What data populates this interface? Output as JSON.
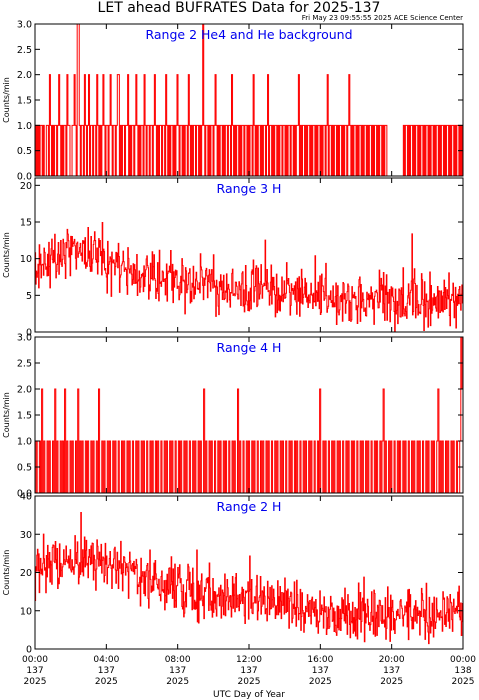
{
  "header": {
    "title": "LET ahead BUFRATES Data for 2025-137",
    "timestamp": "Fri May 23 09:55:55 2025 ACE Science Center"
  },
  "chart_data": {
    "type": "line",
    "xlabel": "UTC Day of Year",
    "xlim_hours": [
      0,
      24
    ],
    "x_ticks": [
      {
        "hour": 0,
        "lines": [
          "00:00",
          "137",
          "2025"
        ]
      },
      {
        "hour": 4,
        "lines": [
          "04:00",
          "137",
          "2025"
        ]
      },
      {
        "hour": 8,
        "lines": [
          "08:00",
          "137",
          "2025"
        ]
      },
      {
        "hour": 12,
        "lines": [
          "12:00",
          "137",
          "2025"
        ]
      },
      {
        "hour": 16,
        "lines": [
          "16:00",
          "137",
          "2025"
        ]
      },
      {
        "hour": 20,
        "lines": [
          "20:00",
          "137",
          "2025"
        ]
      },
      {
        "hour": 24,
        "lines": [
          "00:00",
          "138",
          "2025"
        ]
      }
    ],
    "panels": [
      {
        "id": "range2-he4",
        "title": "Range 2 He4 and He background",
        "ylabel": "Counts/min",
        "ylim": [
          0,
          3.0
        ],
        "yticks": [
          "0.0",
          "0.5",
          "1.0",
          "1.5",
          "2.0",
          "2.5",
          "3.0"
        ],
        "ytick_values": [
          0,
          0.5,
          1.0,
          1.5,
          2.0,
          2.5,
          3.0
        ],
        "data_gap_hours": [
          19.7,
          20.4
        ],
        "series": {
          "values": [
            0,
            1,
            0,
            1,
            0,
            1,
            1,
            0,
            1,
            0,
            0,
            1,
            1,
            0,
            2,
            1,
            0,
            1,
            0,
            1,
            1,
            0,
            1,
            2,
            1,
            0,
            1,
            0,
            1,
            1,
            0,
            2,
            1,
            1,
            0,
            0,
            1,
            1,
            2,
            1,
            0,
            3,
            3,
            1,
            0,
            1,
            1,
            0,
            2,
            1,
            0,
            1,
            2,
            0,
            1,
            1,
            0,
            1,
            1,
            0,
            2,
            1,
            0,
            1,
            0,
            1,
            2,
            1,
            0,
            1,
            1,
            0,
            1,
            2,
            1,
            0,
            1,
            1,
            0,
            1,
            2,
            2,
            0,
            1,
            0,
            1,
            1,
            0,
            1,
            1,
            2,
            0,
            1,
            0,
            1,
            1,
            0,
            1,
            2,
            1,
            0,
            1,
            0,
            1,
            1,
            0,
            2,
            1,
            0,
            1,
            1,
            0,
            1,
            1,
            0,
            1,
            2,
            1,
            0,
            1,
            0,
            1,
            1,
            0,
            1,
            1,
            0,
            2,
            1,
            0,
            1,
            0,
            1,
            1,
            0,
            1,
            0,
            1,
            2,
            1,
            0,
            1,
            1,
            0,
            1,
            0,
            1,
            1,
            0,
            2,
            1,
            0,
            1,
            0,
            1,
            1,
            0,
            1,
            1,
            0,
            1,
            0,
            1,
            3,
            1,
            0,
            1,
            1,
            0,
            1,
            0,
            1,
            1,
            0,
            1,
            2,
            1,
            0,
            1,
            0,
            1,
            1,
            0,
            1,
            0,
            1,
            1,
            0,
            1,
            1,
            0,
            2,
            1,
            0,
            1,
            0,
            1,
            1,
            0,
            1,
            0,
            1,
            1,
            0,
            1,
            1,
            0,
            1,
            0,
            1,
            1,
            0,
            2,
            1,
            0,
            1,
            0,
            1,
            1,
            0,
            1,
            0,
            1,
            1,
            0,
            1,
            2,
            0,
            1,
            1,
            0,
            1,
            0,
            1,
            1,
            0,
            1,
            0,
            1,
            1,
            0,
            1,
            1,
            0,
            1,
            0,
            1,
            1,
            0,
            1,
            1,
            0,
            1,
            0,
            1,
            1,
            2,
            0,
            1,
            0,
            1,
            1,
            0,
            1,
            0,
            1,
            1,
            0,
            1,
            0,
            1,
            1,
            0,
            1,
            0,
            1,
            1,
            0,
            1,
            0,
            1,
            1,
            0,
            1,
            2,
            0,
            1,
            1,
            0,
            1,
            0,
            1,
            1,
            0,
            1,
            0,
            1,
            1,
            0,
            1,
            0,
            1,
            1,
            0,
            1,
            2,
            1,
            0,
            1,
            0,
            1,
            1,
            0,
            1,
            0,
            1,
            1,
            0,
            1,
            0,
            1,
            1,
            0,
            1,
            0,
            1,
            1,
            0,
            1,
            0,
            1,
            1,
            0,
            1,
            0,
            1,
            1,
            0,
            1,
            0,
            1,
            1,
            0,
            0,
            0,
            0,
            0,
            0,
            0,
            0,
            0,
            0,
            0,
            0,
            0,
            0,
            0,
            0,
            1,
            0,
            1,
            1,
            0,
            1,
            0,
            1,
            1,
            0,
            1,
            0,
            1,
            1,
            0,
            1,
            0,
            1,
            1,
            0,
            1,
            0,
            1,
            1,
            0,
            1,
            0,
            1,
            1,
            0,
            1,
            0,
            1,
            1,
            0,
            1,
            0,
            1,
            1,
            0,
            1,
            0,
            1,
            1,
            0,
            1,
            0,
            1,
            1,
            0,
            1,
            0,
            1,
            1,
            0,
            1,
            0,
            1
          ]
        }
      },
      {
        "id": "range3-h",
        "title": "Range 3 H",
        "ylabel": "Counts/min",
        "ylim": [
          0,
          21
        ],
        "yticks": [
          "0",
          "5",
          "10",
          "15",
          "20"
        ],
        "ytick_values": [
          0,
          5,
          10,
          15,
          20
        ],
        "trend": [
          [
            0,
            9
          ],
          [
            2,
            11
          ],
          [
            3.5,
            10.5
          ],
          [
            6,
            7.5
          ],
          [
            10,
            6.5
          ],
          [
            12,
            6
          ],
          [
            15,
            5
          ],
          [
            18,
            4.5
          ],
          [
            24,
            4.2
          ]
        ],
        "noise_amplitude": 3.5,
        "series": {
          "seed": 3137
        }
      },
      {
        "id": "range4-h",
        "title": "Range 4 H",
        "ylabel": "Counts/min",
        "ylim": [
          0,
          3.0
        ],
        "yticks": [
          "0.0",
          "0.5",
          "1.0",
          "1.5",
          "2.0",
          "2.5",
          "3.0"
        ],
        "ytick_values": [
          0,
          0.5,
          1.0,
          1.5,
          2.0,
          2.5,
          3.0
        ],
        "series": {
          "values": [
            0,
            1,
            0,
            0,
            1,
            0,
            2,
            0,
            1,
            0,
            0,
            1,
            0,
            1,
            0,
            0,
            1,
            0,
            2,
            0,
            1,
            0,
            0,
            1,
            0,
            1,
            0,
            2,
            0,
            1,
            0,
            0,
            1,
            0,
            1,
            0,
            0,
            1,
            0,
            2,
            0,
            1,
            0,
            1,
            0,
            0,
            1,
            0,
            1,
            0,
            0,
            1,
            0,
            1,
            0,
            0,
            1,
            0,
            2,
            0,
            0,
            1,
            0,
            1,
            0,
            0,
            1,
            0,
            1,
            0,
            0,
            1,
            0,
            1,
            0,
            0,
            1,
            0,
            0,
            1,
            0,
            1,
            0,
            0,
            1,
            0,
            1,
            0,
            0,
            1,
            0,
            0,
            1,
            0,
            1,
            0,
            0,
            1,
            0,
            1,
            0,
            0,
            1,
            0,
            0,
            1,
            0,
            1,
            0,
            0,
            1,
            0,
            1,
            0,
            0,
            1,
            0,
            0,
            1,
            0,
            1,
            0,
            0,
            1,
            0,
            1,
            0,
            0,
            1,
            0,
            0,
            1,
            0,
            1,
            0,
            0,
            1,
            0,
            1,
            0,
            0,
            1,
            0,
            0,
            1,
            0,
            1,
            0,
            0,
            1,
            0,
            1,
            0,
            0,
            2,
            0,
            1,
            0,
            0,
            1,
            0,
            1,
            0,
            0,
            1,
            0,
            0,
            1,
            0,
            1,
            0,
            0,
            1,
            0,
            1,
            0,
            0,
            1,
            0,
            0,
            1,
            0,
            1,
            0,
            0,
            2,
            0,
            1,
            0,
            0,
            1,
            0,
            0,
            1,
            0,
            1,
            0,
            0,
            1,
            0,
            1,
            0,
            0,
            1,
            0,
            0,
            1,
            0,
            1,
            0,
            0,
            1,
            0,
            1,
            0,
            0,
            1,
            0,
            0,
            1,
            0,
            1,
            0,
            0,
            1,
            0,
            1,
            0,
            0,
            1,
            0,
            0,
            1,
            0,
            1,
            0,
            0,
            1,
            0,
            1,
            0,
            0,
            1,
            0,
            0,
            1,
            0,
            1,
            0,
            0,
            1,
            0,
            1,
            0,
            0,
            1,
            0,
            0,
            1,
            0,
            2,
            0,
            0,
            1,
            0,
            1,
            0,
            0,
            1,
            0,
            0,
            1,
            0,
            1,
            0,
            0,
            1,
            0,
            1,
            0,
            0,
            1,
            0,
            0,
            1,
            0,
            1,
            0,
            0,
            1,
            0,
            1,
            0,
            0,
            1,
            0,
            0,
            1,
            0,
            1,
            0,
            0,
            1,
            0,
            1,
            0,
            0,
            1,
            0,
            0,
            1,
            0,
            1,
            0,
            0,
            1,
            0,
            1,
            2,
            0,
            1,
            0,
            0,
            1,
            0,
            1,
            0,
            0,
            1,
            0,
            0,
            1,
            0,
            1,
            0,
            0,
            1,
            0,
            1,
            0,
            0,
            1,
            0,
            0,
            1,
            0,
            1,
            0,
            0,
            1,
            0,
            1,
            0,
            0,
            1,
            0,
            0,
            1,
            0,
            1,
            0,
            0,
            1,
            0,
            1,
            0,
            0,
            1,
            2,
            0,
            1,
            0,
            1,
            0,
            0,
            1,
            0,
            1,
            0,
            0,
            1,
            0,
            1,
            0,
            0,
            1,
            0,
            0,
            1,
            3,
            2
          ]
        }
      },
      {
        "id": "range2-h",
        "title": "Range 2 H",
        "ylabel": "Counts/min",
        "ylim": [
          0,
          40
        ],
        "yticks": [
          "0",
          "10",
          "20",
          "30",
          "40"
        ],
        "ytick_values": [
          0,
          10,
          20,
          30,
          40
        ],
        "trend": [
          [
            0,
            21
          ],
          [
            1.5,
            23
          ],
          [
            3,
            24
          ],
          [
            5,
            21
          ],
          [
            7,
            17
          ],
          [
            9,
            15
          ],
          [
            11,
            14
          ],
          [
            12.5,
            13
          ],
          [
            14,
            11.5
          ],
          [
            16,
            10
          ],
          [
            18,
            9.5
          ],
          [
            20,
            9.5
          ],
          [
            22,
            9
          ],
          [
            24,
            9
          ]
        ],
        "noise_amplitude": 6.5,
        "series": {
          "seed": 2137
        }
      }
    ]
  }
}
